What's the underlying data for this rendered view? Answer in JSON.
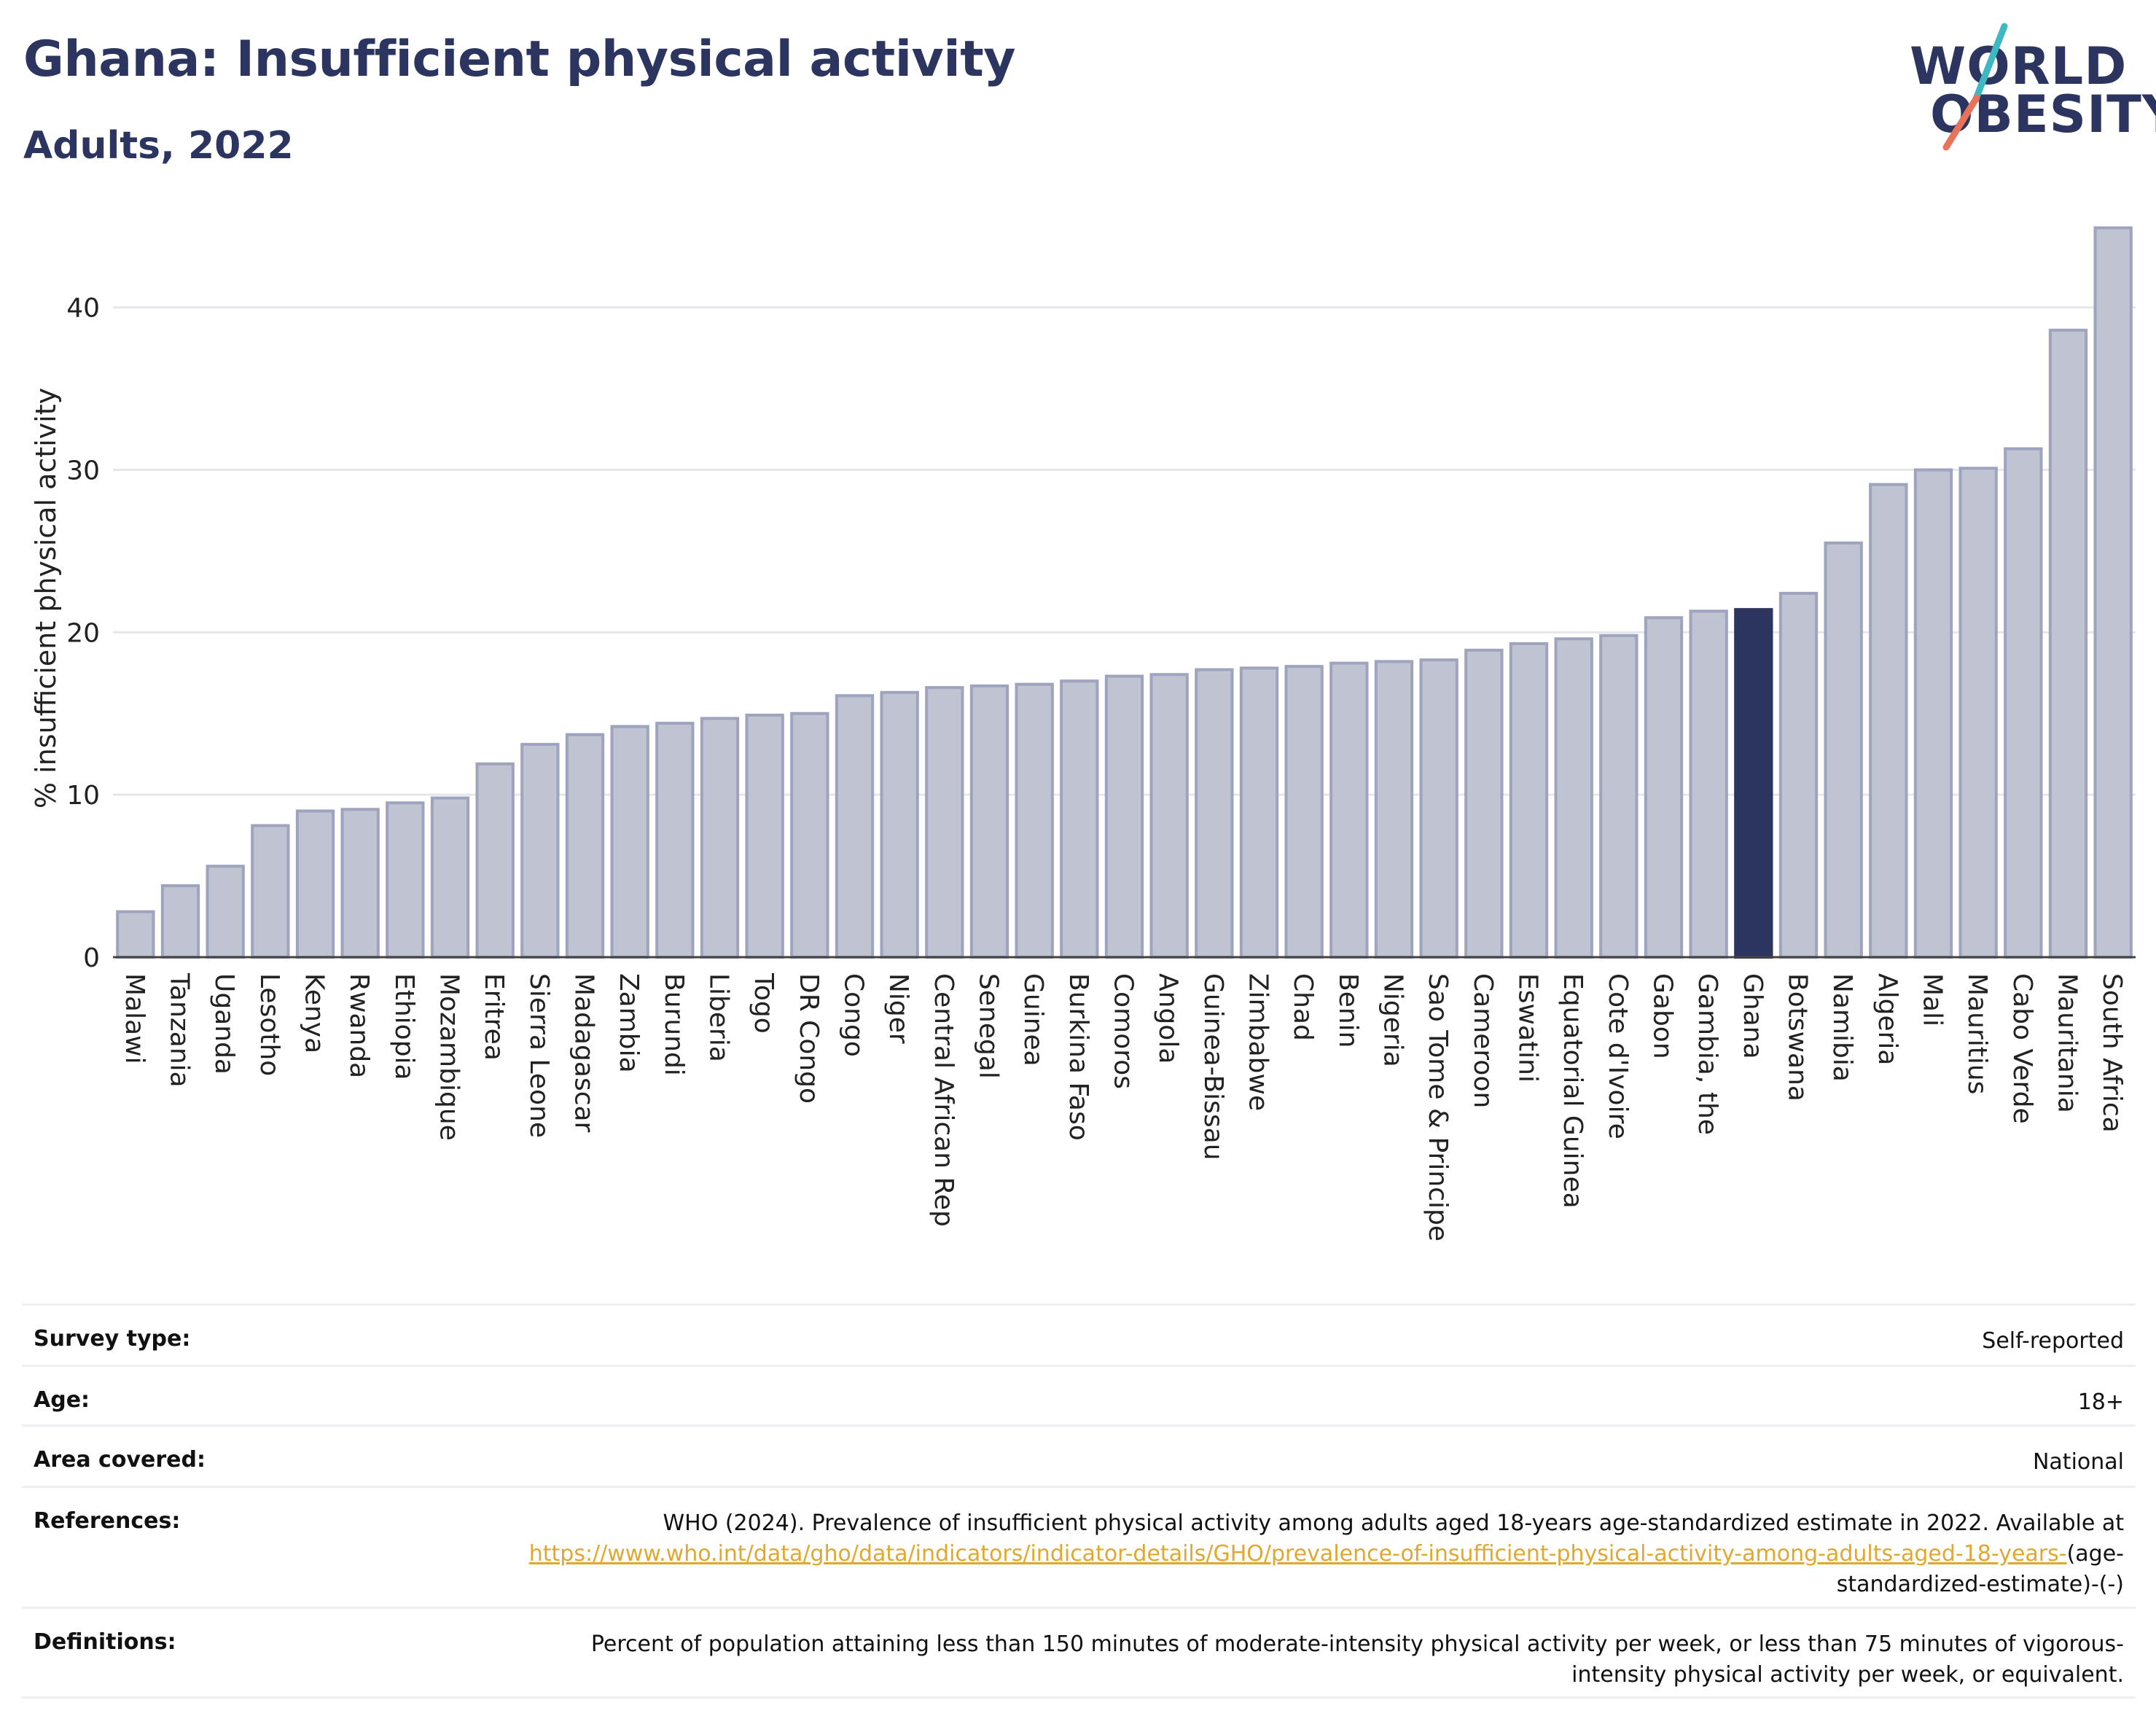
{
  "header": {
    "title": "Ghana: Insufficient physical activity",
    "subtitle": "Adults, 2022"
  },
  "logo": {
    "line1": "WORLD",
    "line2": "OBESITY",
    "accent_teal": "#3fb9c1",
    "accent_coral": "#e8735a"
  },
  "colors": {
    "bar": "#bfc3d2",
    "bar_stroke": "#9ea4bd",
    "highlight": "#2b3560",
    "grid": "#e6e7ec",
    "text": "#2b3560"
  },
  "chart_data": {
    "type": "bar",
    "ylabel": "% insufficient physical activity",
    "ylim": [
      0,
      46
    ],
    "yticks": [
      0,
      10,
      20,
      30,
      40
    ],
    "grid": true,
    "highlight": "Ghana",
    "categories": [
      "Malawi",
      "Tanzania",
      "Uganda",
      "Lesotho",
      "Kenya",
      "Rwanda",
      "Ethiopia",
      "Mozambique",
      "Eritrea",
      "Sierra Leone",
      "Madagascar",
      "Zambia",
      "Burundi",
      "Liberia",
      "Togo",
      "DR Congo",
      "Congo",
      "Niger",
      "Central African Rep",
      "Senegal",
      "Guinea",
      "Burkina Faso",
      "Comoros",
      "Angola",
      "Guinea-Bissau",
      "Zimbabwe",
      "Chad",
      "Benin",
      "Nigeria",
      "Sao Tome & Principe",
      "Cameroon",
      "Eswatini",
      "Equatorial Guinea",
      "Cote d'Ivoire",
      "Gabon",
      "Gambia, the",
      "Ghana",
      "Botswana",
      "Namibia",
      "Algeria",
      "Mali",
      "Mauritius",
      "Cabo Verde",
      "Mauritania",
      "South Africa"
    ],
    "values": [
      2.8,
      4.4,
      5.6,
      8.1,
      9.0,
      9.1,
      9.5,
      9.8,
      11.9,
      13.1,
      13.7,
      14.2,
      14.4,
      14.7,
      14.9,
      15.0,
      16.1,
      16.3,
      16.6,
      16.7,
      16.8,
      17.0,
      17.3,
      17.4,
      17.7,
      17.8,
      17.9,
      18.1,
      18.2,
      18.3,
      18.9,
      19.3,
      19.6,
      19.8,
      20.9,
      21.3,
      21.4,
      22.4,
      25.5,
      29.1,
      30.0,
      30.1,
      31.3,
      38.6,
      44.9
    ]
  },
  "meta": {
    "survey_label": "Survey type:",
    "survey_value": "Self-reported",
    "age_label": "Age:",
    "age_value": "18+",
    "area_label": "Area covered:",
    "area_value": "National",
    "ref_label": "References:",
    "ref_text": "WHO (2024). Prevalence of insufficient physical activity among adults aged 18-years age-standardized estimate in 2022. Available at",
    "ref_link": "https://www.who.int/data/gho/data/indicators/indicator-details/GHO/prevalence-of-insufficient-physical-activity-among-adults-aged-18-years-",
    "ref_tail": "(age-standardized-estimate)-(-)",
    "def_label": "Definitions:",
    "def_value": "Percent of population attaining less than 150 minutes of moderate-intensity physical activity per week, or less than 75 minutes of vigorous-intensity physical activity per week, or equivalent."
  }
}
